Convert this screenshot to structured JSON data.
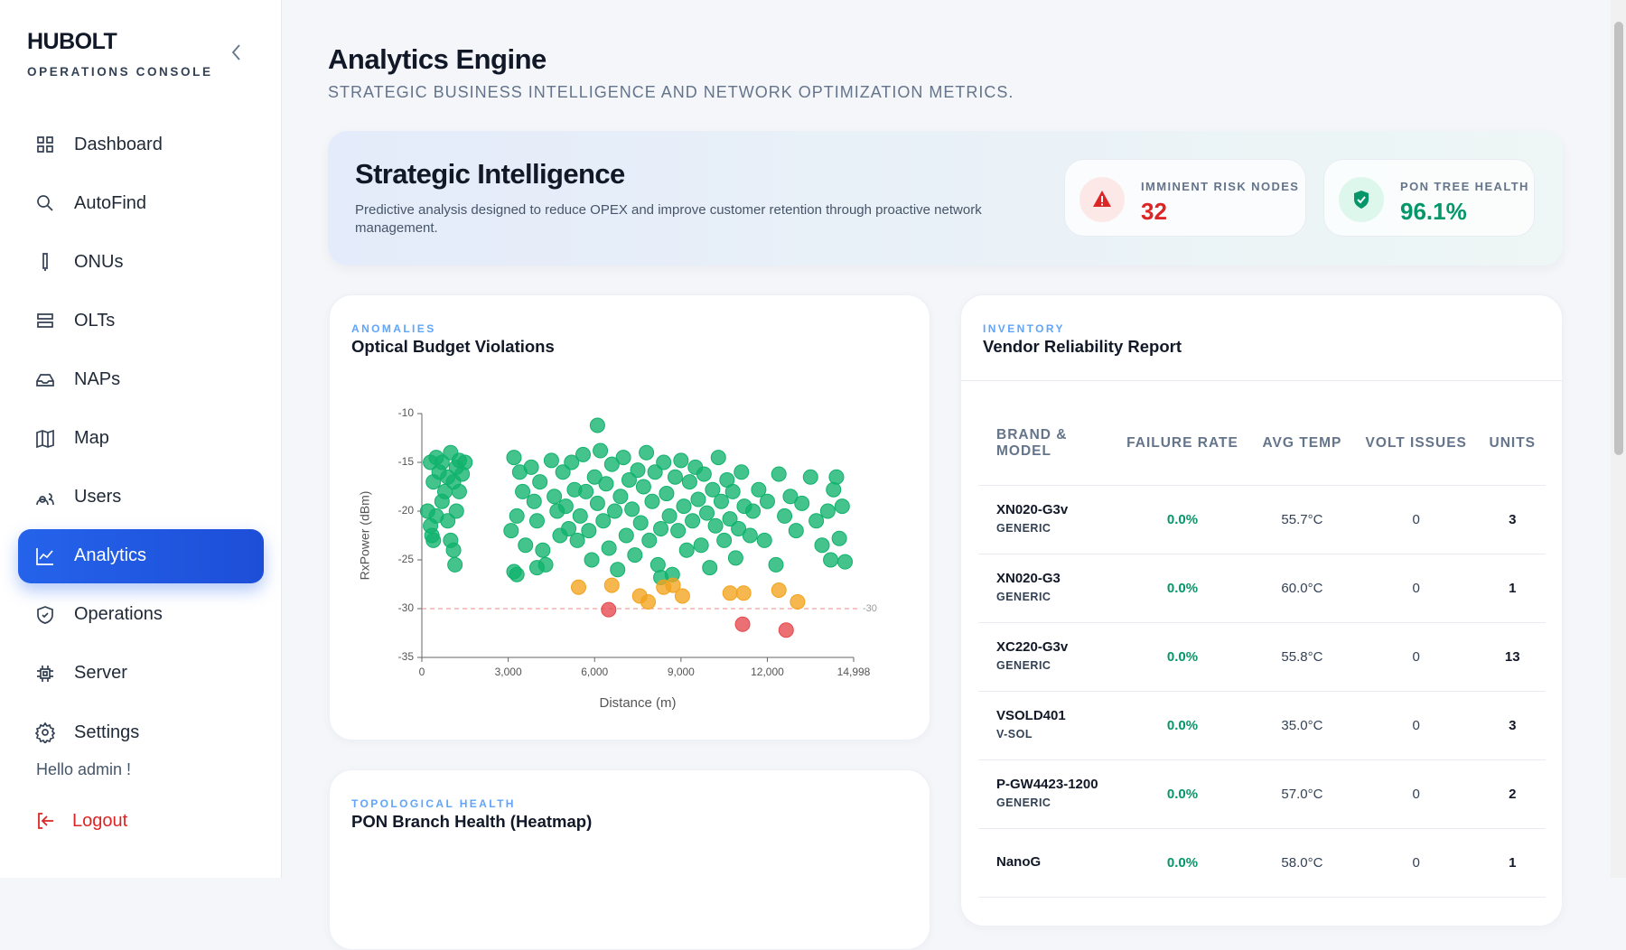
{
  "sidebar": {
    "brand": "HUBOLT",
    "subtitle": "OPERATIONS CONSOLE",
    "nav": [
      "Dashboard",
      "AutoFind",
      "ONUs",
      "OLTs",
      "NAPs",
      "Map",
      "Users",
      "Analytics",
      "Operations",
      "Server",
      "Settings"
    ],
    "active": 7,
    "greeting": "Hello admin !",
    "logout": "Logout"
  },
  "header": {
    "title": "Analytics Engine",
    "subtitle": "STRATEGIC BUSINESS INTELLIGENCE AND NETWORK OPTIMIZATION METRICS."
  },
  "banner": {
    "title": "Strategic Intelligence",
    "description": "Predictive analysis designed to reduce OPEX and improve customer retention through proactive network management.",
    "kpis": [
      {
        "label": "IMMINENT RISK NODES",
        "value": "32"
      },
      {
        "label": "PON TREE HEALTH",
        "value": "96.1%"
      }
    ]
  },
  "chart_card": {
    "kicker": "ANOMALIES",
    "title": "Optical Budget Violations"
  },
  "chart_data": {
    "type": "scatter",
    "x_label": "Distance (m)",
    "y_label": "RxPower (dBm)",
    "xlim": [
      0,
      14998
    ],
    "xticks": [
      0,
      {
        "value": 3000,
        "label": "3,000"
      },
      {
        "value": 6000,
        "label": "6,000"
      },
      {
        "value": 9000,
        "label": "9,000"
      },
      {
        "value": 12000,
        "label": "12,000"
      },
      {
        "value": 14998,
        "label": "14,998"
      }
    ],
    "ylim": [
      -35,
      -10
    ],
    "yticks": [
      -10,
      -15,
      -20,
      -25,
      -30,
      -35
    ],
    "threshold": -30,
    "series": [
      {
        "color": "#10b26c",
        "x": [
          300,
          400,
          500,
          600,
          700,
          800,
          900,
          1000,
          1100,
          1200,
          1300,
          1400,
          1500,
          200,
          300,
          350,
          400,
          500,
          700,
          900,
          1000,
          1100,
          1150,
          1300,
          1200,
          3200,
          3400,
          3500,
          3300,
          3100,
          3600,
          3800,
          3900,
          4000,
          4100,
          4200,
          4300,
          3200,
          4500,
          4600,
          4700,
          4800,
          4900,
          5000,
          5100,
          5200,
          5300,
          5400,
          5500,
          5600,
          5700,
          5800,
          5900,
          6000,
          6100,
          6200,
          6300,
          6400,
          6500,
          6600,
          6700,
          6800,
          6900,
          7000,
          7100,
          7200,
          7300,
          7400,
          7500,
          7600,
          7700,
          7800,
          7900,
          8000,
          8100,
          8200,
          8300,
          8400,
          8500,
          8600,
          8700,
          8800,
          8900,
          9000,
          9100,
          9200,
          9300,
          9400,
          9500,
          9600,
          9700,
          9800,
          9900,
          10000,
          10100,
          10200,
          10300,
          10400,
          10500,
          10600,
          10700,
          10800,
          10900,
          11000,
          11100,
          11200,
          11400,
          11500,
          11700,
          11900,
          12000,
          12300,
          12400,
          12600,
          12800,
          13000,
          13200,
          13500,
          13700,
          13900,
          14100,
          14200,
          14300,
          14400,
          14500,
          14600,
          14700,
          6100,
          8300,
          3300,
          4000
        ],
        "values": [
          -15,
          -17,
          -14.5,
          -16,
          -15,
          -18,
          -16.5,
          -14,
          -17,
          -15.5,
          -14.8,
          -16.2,
          -15,
          -20,
          -21.5,
          -22.5,
          -23,
          -20.5,
          -19,
          -21,
          -23,
          -24,
          -25.5,
          -18,
          -20,
          -14.5,
          -16,
          -18,
          -20.5,
          -22,
          -23.5,
          -15.5,
          -19,
          -21,
          -17,
          -24,
          -25.5,
          -26.2,
          -14.8,
          -18.5,
          -20,
          -22.5,
          -16,
          -19.5,
          -21.8,
          -15,
          -17.8,
          -23,
          -20.5,
          -14.2,
          -18,
          -22,
          -25,
          -16.5,
          -19.2,
          -13.8,
          -21,
          -17.2,
          -23.8,
          -15.2,
          -20,
          -26,
          -18.5,
          -14.5,
          -22.5,
          -16.8,
          -19.8,
          -24.5,
          -15.8,
          -21.2,
          -17.5,
          -14,
          -23,
          -19,
          -16,
          -25.5,
          -21.8,
          -15,
          -18.2,
          -20.5,
          -26.5,
          -16.5,
          -22,
          -14.8,
          -19.5,
          -24,
          -17,
          -21,
          -15.5,
          -18.8,
          -23.5,
          -16.2,
          -20.2,
          -25.8,
          -17.8,
          -21.5,
          -14.5,
          -19,
          -23,
          -16.8,
          -20.8,
          -18,
          -24.8,
          -21.8,
          -16,
          -19.5,
          -22.5,
          -20,
          -17.8,
          -23,
          -19,
          -25.5,
          -16.2,
          -20.5,
          -18.5,
          -22,
          -19.2,
          -16.5,
          -21,
          -23.5,
          -20,
          -25,
          -17.8,
          -16.5,
          -22.8,
          -19.5,
          -25.2,
          -11.2,
          -26.8,
          -26.5,
          -25.8
        ]
      },
      {
        "color": "#f2a31c",
        "x": [
          5444,
          6597,
          7570,
          7859,
          8400,
          8724,
          9049,
          10707,
          11176,
          12401,
          13050
        ],
        "values": [
          -27.8,
          -27.6,
          -28.7,
          -29.3,
          -27.8,
          -27.6,
          -28.7,
          -28.4,
          -28.4,
          -28.1,
          -29.3
        ]
      },
      {
        "color": "#e5484d",
        "x": [
          6489,
          11140,
          12654
        ],
        "values": [
          -30.1,
          -31.6,
          -32.2
        ]
      }
    ]
  },
  "heatmap_card": {
    "kicker": "TOPOLOGICAL HEALTH",
    "title": "PON Branch Health (Heatmap)"
  },
  "table": {
    "kicker": "INVENTORY",
    "title": "Vendor Reliability Report",
    "columns": [
      "BRAND & MODEL",
      "FAILURE RATE",
      "AVG TEMP",
      "VOLT ISSUES",
      "UNITS"
    ],
    "rows": [
      [
        "XN020-G3v",
        "GENERIC",
        "0.0%",
        "55.7°C",
        "0",
        "3"
      ],
      [
        "XN020-G3",
        "GENERIC",
        "0.0%",
        "60.0°C",
        "0",
        "1"
      ],
      [
        "XC220-G3v",
        "GENERIC",
        "0.0%",
        "55.8°C",
        "0",
        "13"
      ],
      [
        "VSOLD401",
        "V-SOL",
        "0.0%",
        "35.0°C",
        "0",
        "3"
      ],
      [
        "P-GW4423-1200",
        "GENERIC",
        "0.0%",
        "57.0°C",
        "0",
        "2"
      ],
      [
        "NanoG",
        "",
        "0.0%",
        "58.0°C",
        "0",
        "1"
      ]
    ]
  }
}
